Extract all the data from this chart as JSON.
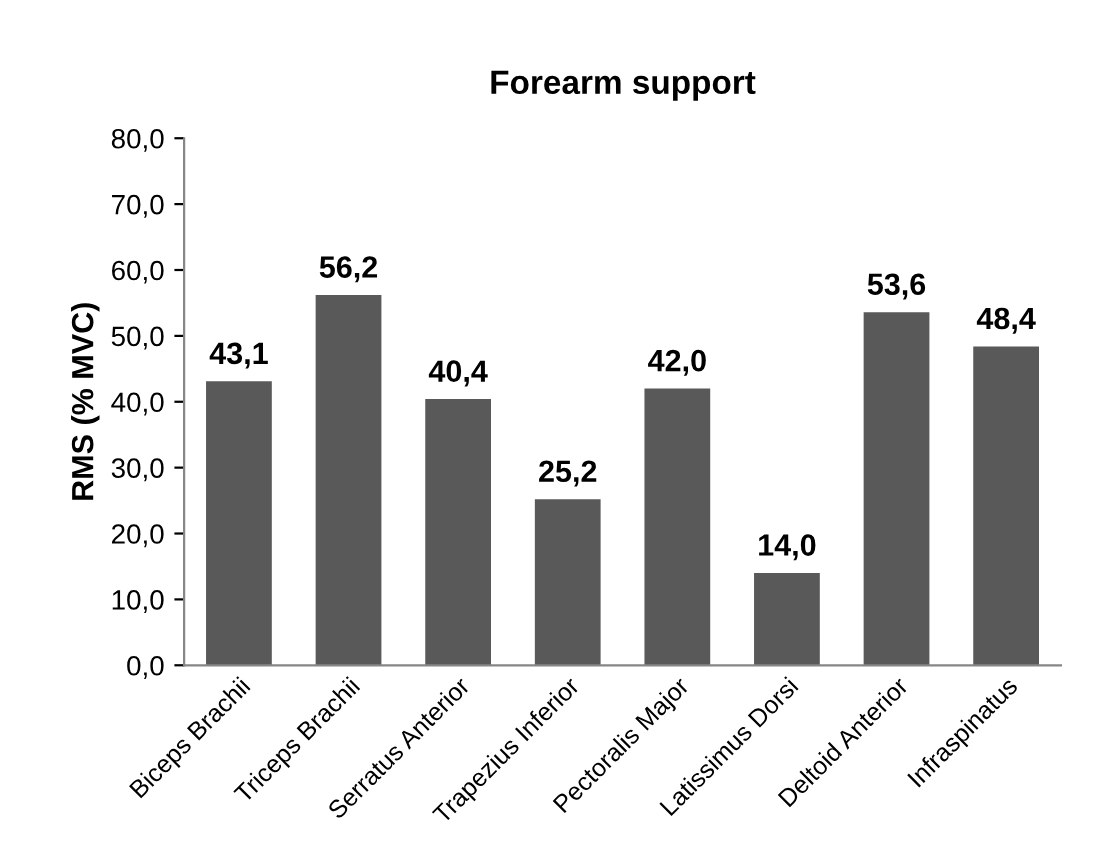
{
  "chart_data": {
    "type": "bar",
    "title": "Forearm support",
    "ylabel": "RMS (% MVC)",
    "categories": [
      "Biceps Brachii",
      "Triceps Brachii",
      "Serratus Anterior",
      "Trapezius Inferior",
      "Pectoralis Major",
      "Latissimus Dorsi",
      "Deltoid Anterior",
      "Infraspinatus"
    ],
    "values": [
      43.1,
      56.2,
      40.4,
      25.2,
      42.0,
      14.0,
      53.6,
      48.4
    ],
    "value_labels": [
      "43,1",
      "56,2",
      "40,4",
      "25,2",
      "42,0",
      "14,0",
      "53,6",
      "48,4"
    ],
    "color": "#595959",
    "ylim": [
      0,
      80
    ],
    "yticks": [
      {
        "value": 0,
        "label": "0,0"
      },
      {
        "value": 10,
        "label": "10,0"
      },
      {
        "value": 20,
        "label": "20,0"
      },
      {
        "value": 30,
        "label": "30,0"
      },
      {
        "value": 40,
        "label": "40,0"
      },
      {
        "value": 50,
        "label": "50,0"
      },
      {
        "value": 60,
        "label": "60,0"
      },
      {
        "value": 70,
        "label": "70,0"
      },
      {
        "value": 80,
        "label": "80,0"
      }
    ],
    "grid": false,
    "legend": false
  }
}
